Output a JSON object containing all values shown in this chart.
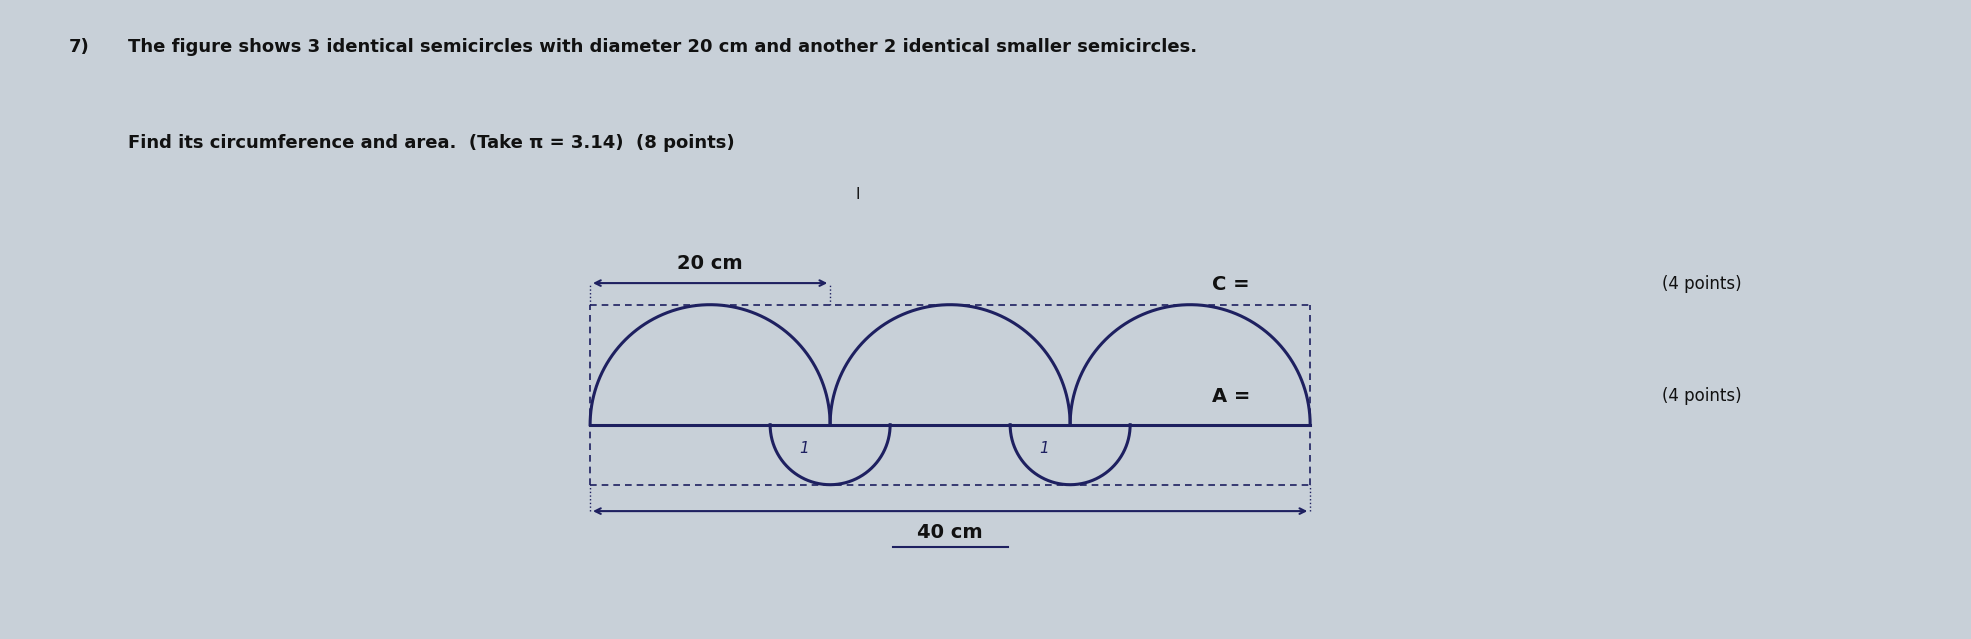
{
  "title_line1": "The figure shows 3 identical semicircles with diameter 20 cm and another 2 identical smaller semicircles.",
  "title_line2": "Find its circumference and area.  (Take π = 3.14)  (8 points)",
  "problem_number": "7)",
  "dim_label_20": "20 cm",
  "dim_label_40": "40 cm",
  "c_label": "C =",
  "a_label": "A =",
  "points_4a": "(4 points)",
  "points_4b": "(4 points)",
  "bg_color": "#c8d0d8",
  "draw_color": "#1e2060",
  "text_color": "#111111",
  "fig_width": 19.71,
  "fig_height": 6.39,
  "large_r": 1.0,
  "small_r": 0.5,
  "small_label": "1"
}
